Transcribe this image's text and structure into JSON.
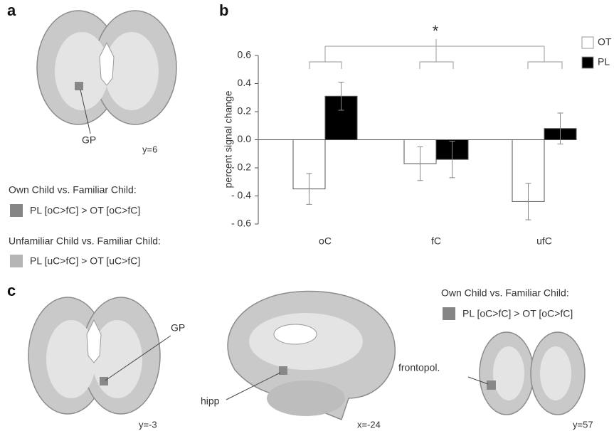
{
  "panel_labels": [
    "a",
    "b",
    "c"
  ],
  "panel_a": {
    "region_label": "GP",
    "slice": "y=6",
    "legend": [
      {
        "heading": "Own Child vs. Familiar Child:",
        "item": "PL [oC>fC] > OT [oC>fC]"
      },
      {
        "heading": "Unfamiliar Child vs. Familiar Child:",
        "item": "PL [uC>fC] > OT [uC>fC]"
      }
    ]
  },
  "chart_data": {
    "type": "bar",
    "ylabel": "percent signal change",
    "annotation": "*",
    "categories": [
      "oC",
      "fC",
      "ufC"
    ],
    "series": [
      {
        "name": "OT",
        "color": "#ffffff",
        "values": [
          -0.35,
          -0.17,
          -0.44
        ],
        "errors": [
          0.11,
          0.12,
          0.13
        ]
      },
      {
        "name": "PL",
        "color": "#000000",
        "values": [
          0.31,
          -0.14,
          0.08
        ],
        "errors": [
          0.1,
          0.13,
          0.11
        ]
      }
    ],
    "ylim": [
      -0.6,
      0.6
    ],
    "yticks": [
      {
        "value": -0.6,
        "label": "- 0.6"
      },
      {
        "value": -0.4,
        "label": "- 0.4"
      },
      {
        "value": -0.2,
        "label": "- 0.2"
      },
      {
        "value": 0,
        "label": "0.0"
      },
      0.2,
      0.4,
      0.6
    ],
    "legend": "upper right"
  },
  "panel_c": {
    "images": [
      {
        "region_label": "GP",
        "slice": "y=-3"
      },
      {
        "region_label": "hipp",
        "slice": "x=-24"
      },
      {
        "region_label": "frontopol.",
        "slice": "y=57"
      }
    ],
    "legend": {
      "heading": "Own Child vs. Familiar Child:",
      "item": "PL [oC>fC] > OT [oC>fC]"
    }
  }
}
